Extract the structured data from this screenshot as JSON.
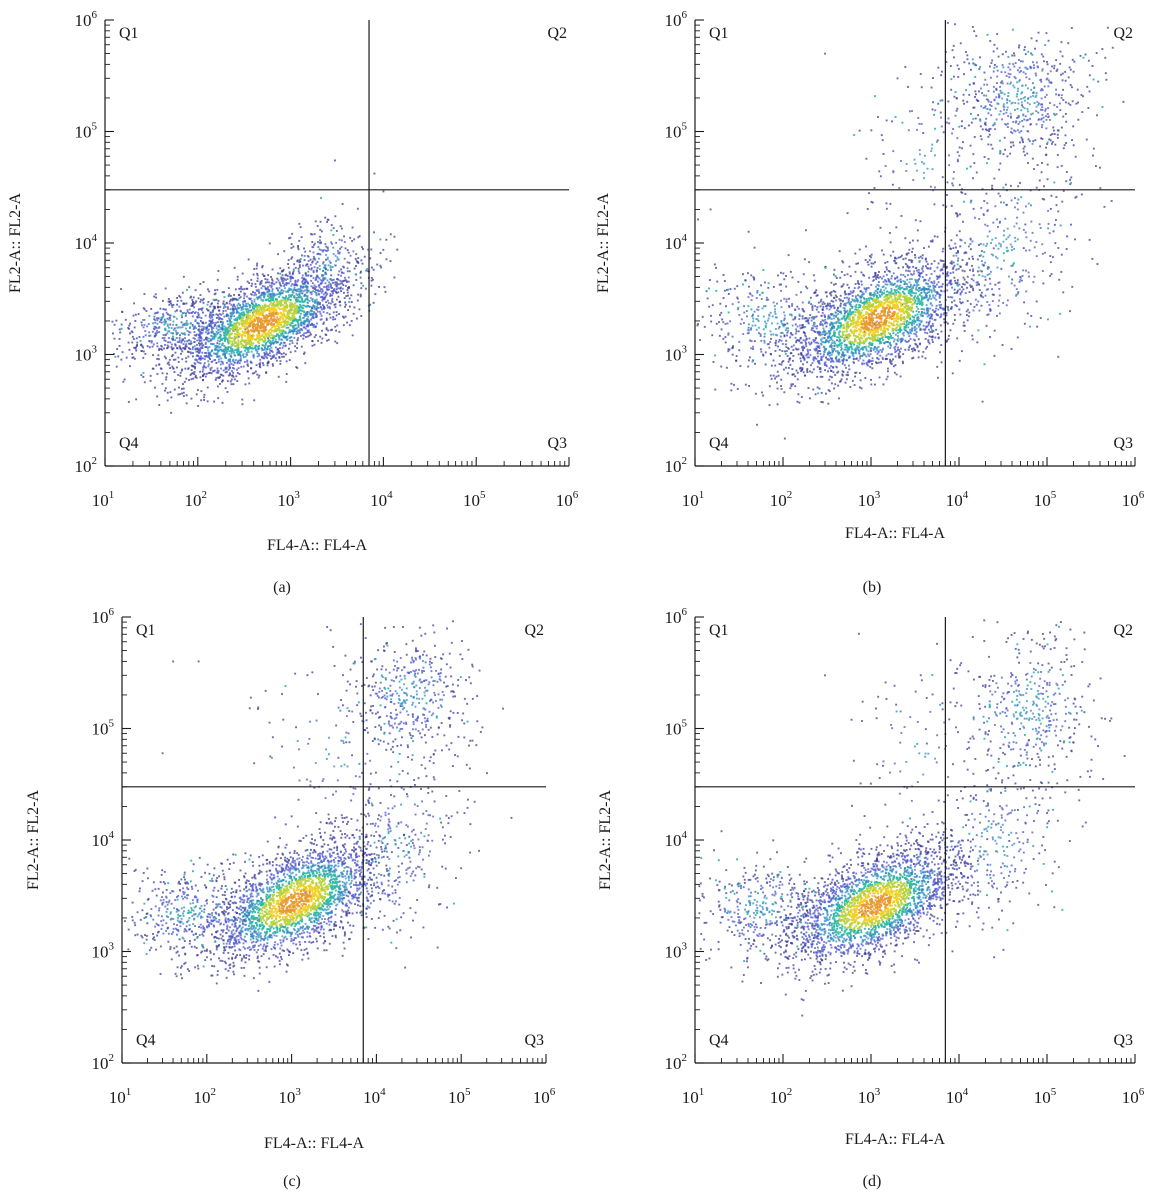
{
  "figure": {
    "chart_data": [
      {
        "type": "scatter",
        "panel_label": "(a)",
        "xlabel": "FL4-A:: FL4-A",
        "ylabel": "FL2-A:: FL2-A",
        "xscale": "log",
        "yscale": "log",
        "xlim": [
          10,
          1000000
        ],
        "ylim": [
          100,
          1000000
        ],
        "x_ticks": [
          1,
          2,
          3,
          4,
          5,
          6
        ],
        "y_ticks": [
          2,
          3,
          4,
          5,
          6
        ],
        "tick_base": "10",
        "gate": {
          "x": 7000,
          "y": 30000
        },
        "quadrants": [
          "Q1",
          "Q2",
          "Q3",
          "Q4"
        ],
        "quadrant_percentages": "not shown",
        "clusters": [
          {
            "region": "Q4",
            "center": [
              500,
              1900
            ],
            "spread_log": [
              0.45,
              0.2
            ],
            "tilt": 0.35,
            "points": 2600
          },
          {
            "region": "Q4",
            "center": [
              60,
              1800
            ],
            "spread_log": [
              0.35,
              0.15
            ],
            "tilt": 0.1,
            "points": 500
          },
          {
            "region": "Q4",
            "center": [
              2500,
              6000
            ],
            "spread_log": [
              0.25,
              0.25
            ],
            "tilt": 0.2,
            "points": 300
          }
        ],
        "outliers": [
          [
            8000,
            42000
          ],
          [
            10000,
            29000
          ],
          [
            12000,
            12000
          ],
          [
            3000,
            55000
          ]
        ]
      },
      {
        "type": "scatter",
        "panel_label": "(b)",
        "xlabel": "FL4-A:: FL4-A",
        "ylabel": "FL2-A:: FL2-A",
        "xscale": "log",
        "yscale": "log",
        "xlim": [
          10,
          1000000
        ],
        "ylim": [
          100,
          1000000
        ],
        "x_ticks": [
          1,
          2,
          3,
          4,
          5,
          6
        ],
        "y_ticks": [
          2,
          3,
          4,
          5,
          6
        ],
        "tick_base": "10",
        "gate": {
          "x": 7000,
          "y": 30000
        },
        "quadrants": [
          "Q1",
          "Q2",
          "Q3",
          "Q4"
        ],
        "quadrant_percentages": "not shown",
        "clusters": [
          {
            "region": "Q4",
            "center": [
              1200,
              2100
            ],
            "spread_log": [
              0.5,
              0.22
            ],
            "tilt": 0.3,
            "points": 2600
          },
          {
            "region": "Q4",
            "center": [
              80,
              2000
            ],
            "spread_log": [
              0.5,
              0.25
            ],
            "tilt": 0.0,
            "points": 400
          },
          {
            "region": "Q2",
            "center": [
              50000,
              200000
            ],
            "spread_log": [
              0.4,
              0.3
            ],
            "tilt": 0.0,
            "points": 550
          },
          {
            "region": "Q3",
            "center": [
              30000,
              8000
            ],
            "spread_log": [
              0.5,
              0.45
            ],
            "tilt": 0.3,
            "points": 350
          },
          {
            "region": "Q1",
            "center": [
              4000,
              60000
            ],
            "spread_log": [
              0.4,
              0.4
            ],
            "tilt": 0.2,
            "points": 120
          }
        ],
        "outliers": [
          [
            300,
            500000
          ],
          [
            2000,
            300000
          ],
          [
            15,
            20000
          ]
        ]
      },
      {
        "type": "scatter",
        "panel_label": "(c)",
        "xlabel": "FL4-A:: FL4-A",
        "ylabel": "FL2-A:: FL2-A",
        "xscale": "log",
        "yscale": "log",
        "xlim": [
          10,
          1000000
        ],
        "ylim": [
          100,
          1000000
        ],
        "x_ticks": [
          1,
          2,
          3,
          4,
          5,
          6
        ],
        "y_ticks": [
          2,
          3,
          4,
          5,
          6
        ],
        "tick_base": "10",
        "gate": {
          "x": 7000,
          "y": 30000
        },
        "quadrants": [
          "Q1",
          "Q2",
          "Q3",
          "Q4"
        ],
        "quadrant_percentages": "not shown",
        "clusters": [
          {
            "region": "Q4",
            "center": [
              1100,
              2800
            ],
            "spread_log": [
              0.5,
              0.22
            ],
            "tilt": 0.3,
            "points": 2500
          },
          {
            "region": "Q4",
            "center": [
              60,
              2200
            ],
            "spread_log": [
              0.4,
              0.2
            ],
            "tilt": 0.0,
            "points": 400
          },
          {
            "region": "Q2",
            "center": [
              25000,
              200000
            ],
            "spread_log": [
              0.35,
              0.3
            ],
            "tilt": 0.0,
            "points": 450
          },
          {
            "region": "Q3",
            "center": [
              15000,
              8000
            ],
            "spread_log": [
              0.45,
              0.4
            ],
            "tilt": 0.3,
            "points": 300
          },
          {
            "region": "Q1",
            "center": [
              3000,
              60000
            ],
            "spread_log": [
              0.4,
              0.4
            ],
            "tilt": 0.0,
            "points": 100
          }
        ],
        "outliers": [
          [
            40,
            400000
          ],
          [
            80,
            400000
          ],
          [
            400,
            150000
          ],
          [
            30,
            60000
          ]
        ]
      },
      {
        "type": "scatter",
        "panel_label": "(d)",
        "xlabel": "FL4-A:: FL4-A",
        "ylabel": "FL2-A:: FL2-A",
        "xscale": "log",
        "yscale": "log",
        "xlim": [
          10,
          1000000
        ],
        "ylim": [
          100,
          1000000
        ],
        "x_ticks": [
          1,
          2,
          3,
          4,
          5,
          6
        ],
        "y_ticks": [
          2,
          3,
          4,
          5,
          6
        ],
        "tick_base": "10",
        "gate": {
          "x": 7000,
          "y": 30000
        },
        "quadrants": [
          "Q1",
          "Q2",
          "Q3",
          "Q4"
        ],
        "quadrant_percentages": "not shown",
        "clusters": [
          {
            "region": "Q4",
            "center": [
              1100,
              2600
            ],
            "spread_log": [
              0.48,
              0.22
            ],
            "tilt": 0.3,
            "points": 2500
          },
          {
            "region": "Q4",
            "center": [
              60,
              2400
            ],
            "spread_log": [
              0.4,
              0.22
            ],
            "tilt": 0.0,
            "points": 400
          },
          {
            "region": "Q2",
            "center": [
              60000,
              150000
            ],
            "spread_log": [
              0.4,
              0.35
            ],
            "tilt": 0.0,
            "points": 420
          },
          {
            "region": "Q3",
            "center": [
              25000,
              9000
            ],
            "spread_log": [
              0.45,
              0.35
            ],
            "tilt": 0.3,
            "points": 280
          },
          {
            "region": "Q1",
            "center": [
              3500,
              60000
            ],
            "spread_log": [
              0.35,
              0.4
            ],
            "tilt": 0.0,
            "points": 80
          }
        ],
        "outliers": [
          [
            300,
            300000
          ],
          [
            600,
            120000
          ],
          [
            20,
            12000
          ]
        ]
      }
    ],
    "density_colors": [
      "#3a3a9a",
      "#4b55c8",
      "#2e8bc0",
      "#2fb8a8",
      "#b8d23a",
      "#f0d020",
      "#e89a30"
    ],
    "line_color": "#1a1a1a"
  }
}
